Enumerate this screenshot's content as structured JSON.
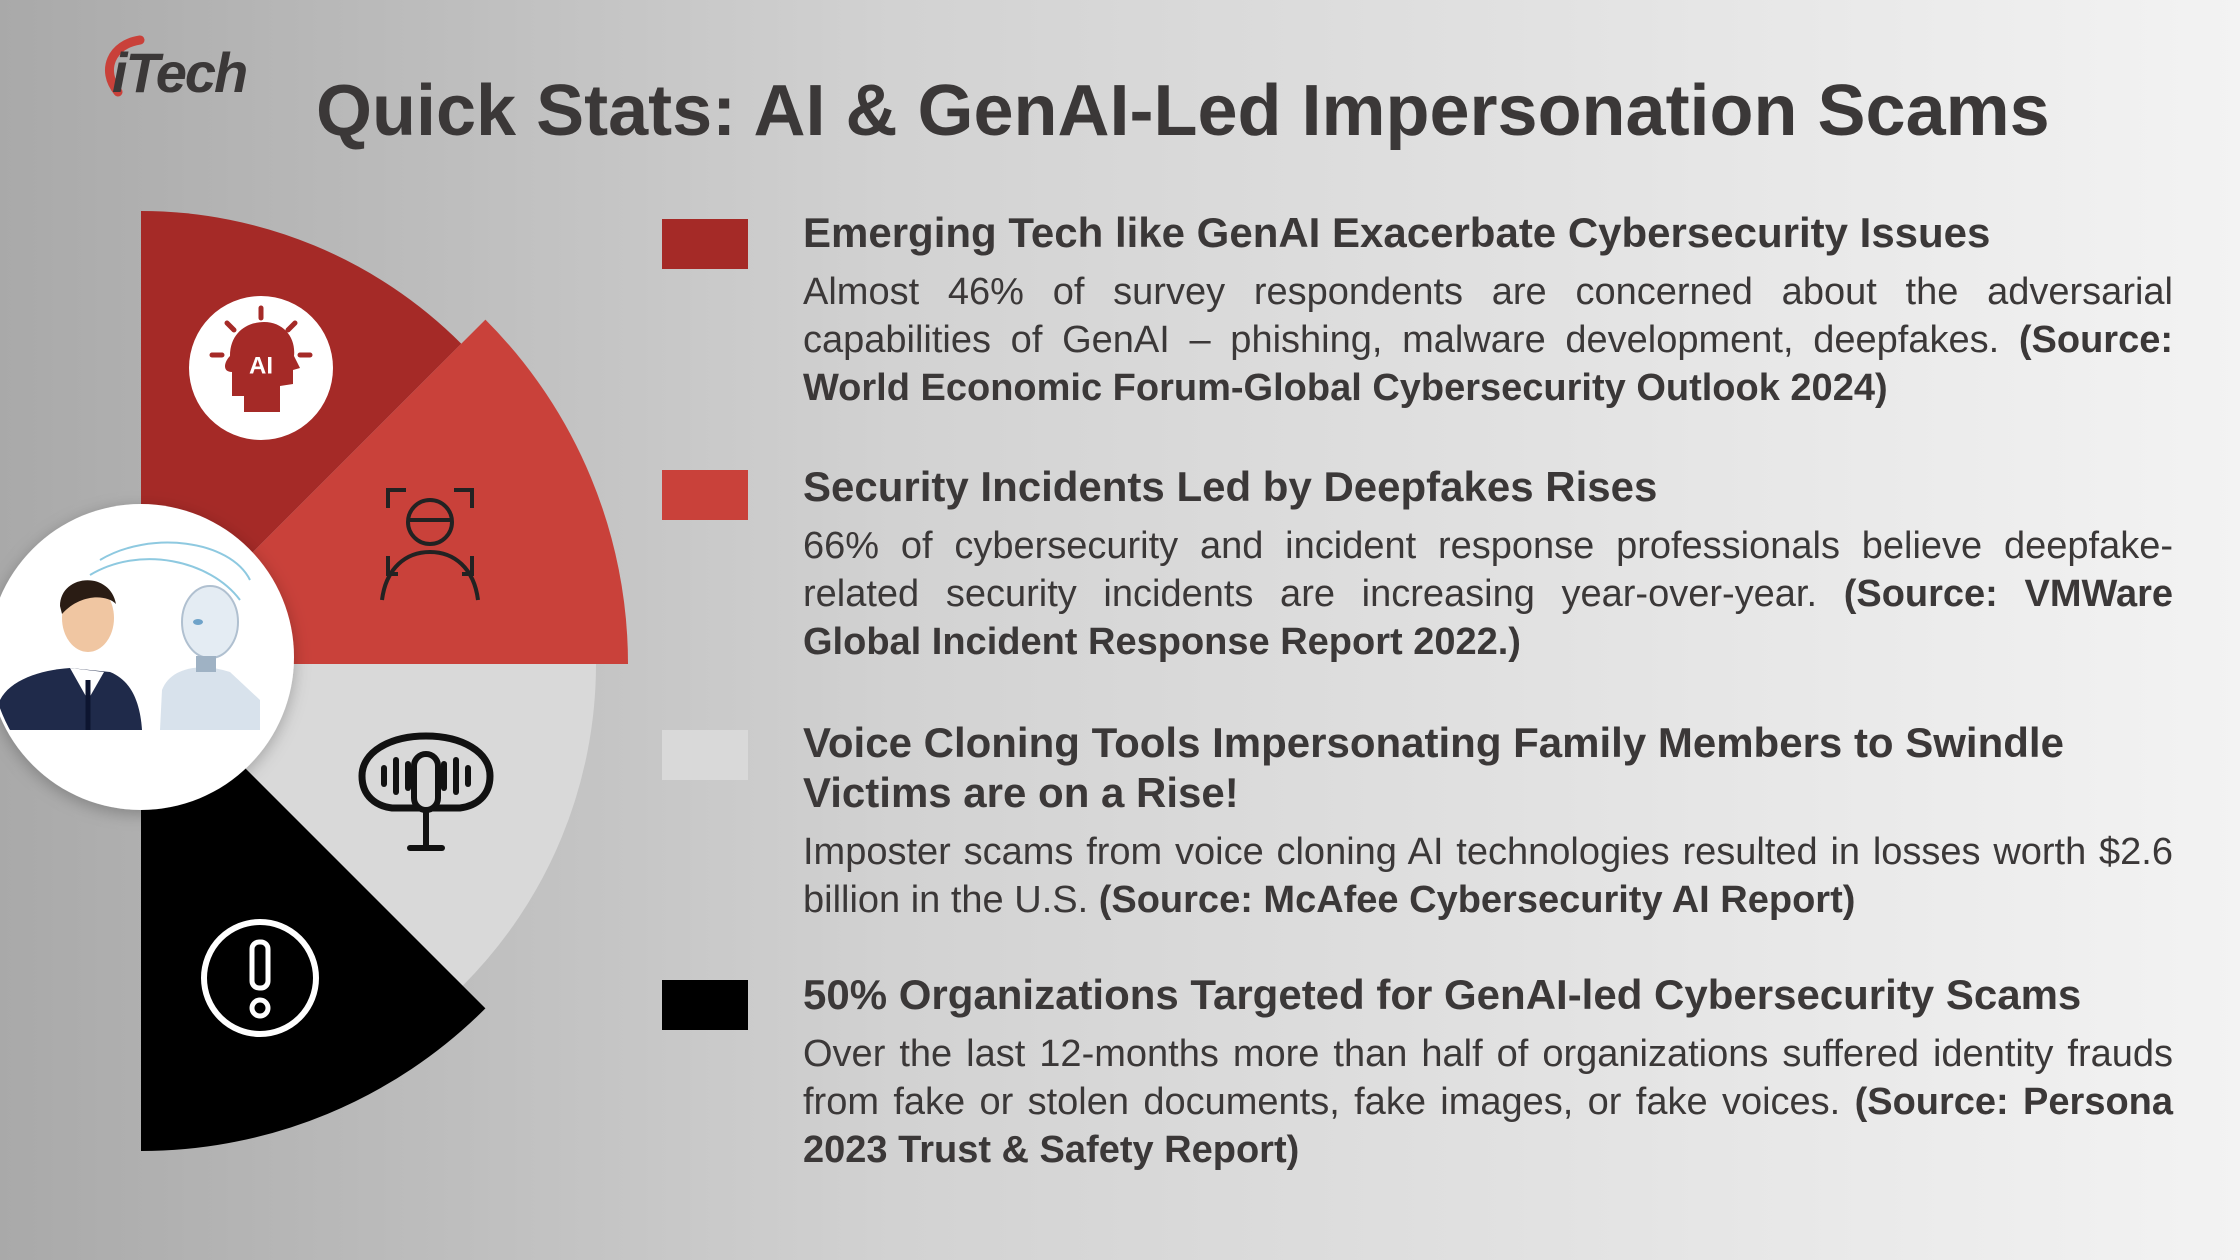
{
  "logo": "iTech",
  "title": "Quick Stats: AI & GenAI-Led Impersonation Scams",
  "icon_label": "AI",
  "items": [
    {
      "heading": "Emerging Tech like GenAI Exacerbate Cybersecurity Issues",
      "body": "Almost 46% of survey respondents are concerned about the adversarial capabilities of GenAI – phishing, malware development, deepfakes.",
      "source": "(Source: World Economic Forum-Global Cybersecurity Outlook 2024)"
    },
    {
      "heading": "Security Incidents Led by Deepfakes Rises",
      "body": "66% of cybersecurity and incident response professionals believe deepfake-related security incidents are increasing year-over-year.",
      "source": "(Source: VMWare Global Incident Response Report 2022.)"
    },
    {
      "heading": "Voice Cloning Tools Impersonating Family Members to Swindle Victims are on a Rise!",
      "body": "Imposter scams from voice cloning AI technologies resulted in losses worth $2.6 billion in the U.S.",
      "source": "(Source: McAfee Cybersecurity AI Report)"
    },
    {
      "heading": "50% Organizations Targeted for GenAI-led Cybersecurity Scams",
      "body": "Over the last 12-months more than half of organizations suffered identity frauds from fake or stolen documents, fake images, or fake voices.",
      "source": "(Source: Persona 2023 Trust & Safety Report)"
    }
  ]
}
